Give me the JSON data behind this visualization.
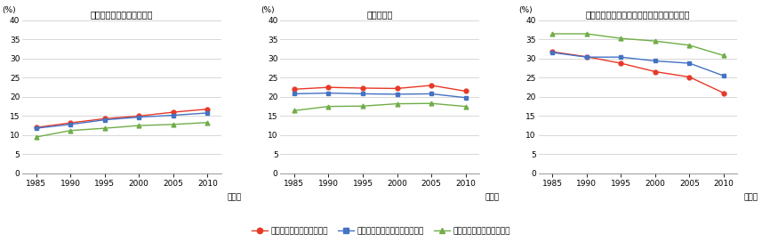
{
  "years": [
    1985,
    1990,
    1995,
    2000,
    2005,
    2010
  ],
  "charts": [
    {
      "title": "専門的・技術的職業従事者",
      "ylim": [
        0,
        40
      ],
      "yticks": [
        0,
        5,
        10,
        15,
        20,
        25,
        30,
        35,
        40
      ],
      "series": {
        "red": [
          12.0,
          13.2,
          14.3,
          15.0,
          16.0,
          16.8
        ],
        "blue": [
          11.8,
          12.8,
          14.0,
          14.7,
          15.2,
          15.8
        ],
        "green": [
          9.5,
          11.2,
          11.8,
          12.5,
          12.8,
          13.3
        ]
      }
    },
    {
      "title": "事務従事者",
      "ylim": [
        0,
        40
      ],
      "yticks": [
        0,
        5,
        10,
        15,
        20,
        25,
        30,
        35,
        40
      ],
      "series": {
        "red": [
          22.0,
          22.5,
          22.3,
          22.2,
          23.0,
          21.5
        ],
        "blue": [
          20.8,
          21.0,
          20.8,
          20.7,
          20.8,
          19.8
        ],
        "green": [
          16.4,
          17.5,
          17.6,
          18.2,
          18.3,
          17.5
        ]
      }
    },
    {
      "title": "生産工程・労務作業者及び運輸・通信事業者",
      "ylim": [
        0,
        40
      ],
      "yticks": [
        0,
        5,
        10,
        15,
        20,
        25,
        30,
        35,
        40
      ],
      "series": {
        "red": [
          31.8,
          30.5,
          28.8,
          26.6,
          25.2,
          21.0
        ],
        "blue": [
          31.6,
          30.4,
          30.4,
          29.4,
          28.8,
          25.5
        ],
        "green": [
          36.5,
          36.5,
          35.3,
          34.6,
          33.5,
          30.8
        ]
      }
    }
  ],
  "colors": {
    "red": "#e83828",
    "blue": "#4472c4",
    "green": "#70ad47"
  },
  "legend_labels": [
    "三大都市圈の政令指定都市",
    "三大都市圈以外の政令指定都市",
    "政令指定都市以外の市町村"
  ],
  "ylabel": "(%)",
  "xlabel": "（年）",
  "background_color": "#ffffff",
  "grid_color": "#c8c8c8"
}
